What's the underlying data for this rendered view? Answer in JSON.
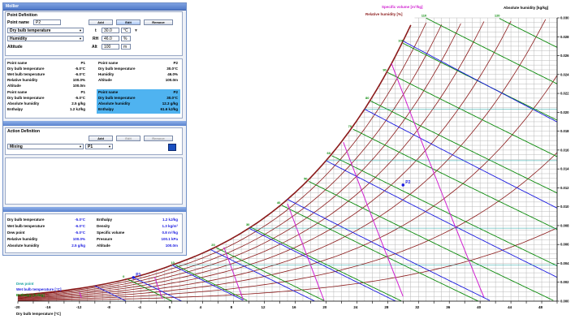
{
  "app": {
    "window_title": "Mollier",
    "accent": "#4f79c8"
  },
  "point_definition": {
    "header": "Point Definition",
    "point_name_label": "Point name",
    "point_name_value": "P2",
    "buttons": {
      "add": "Add",
      "edit": "Edit",
      "remove": "Remove"
    },
    "param1_select": "Dry bulb temperature",
    "param2_select": "Humidity",
    "param3_select": "Altitude",
    "t_label": "t",
    "t_value": "30.0",
    "t_unit": "°C",
    "rh_label": "RH",
    "rh_value": "46.0",
    "rh_unit": "%",
    "alt_label": "Alt",
    "alt_value": "100",
    "alt_unit": "m"
  },
  "point_list": {
    "left": {
      "name_label": "Point name",
      "name": "P1",
      "rows": [
        {
          "label": "Dry bulb temperature",
          "value": "-5.0°C"
        },
        {
          "label": "Wet bulb temperature",
          "value": "-6.0°C"
        },
        {
          "label": "Relative humidity",
          "value": "100.0%"
        },
        {
          "label": "Altitude",
          "value": "100.0m"
        }
      ],
      "sub_name": "P1",
      "sub_rows": [
        {
          "label": "Dry bulb temperature",
          "value": "-5.0°C"
        },
        {
          "label": "Absolute humidity",
          "value": "2.5 g/kg"
        },
        {
          "label": "Enthalpy",
          "value": "1.2 kJ/kg"
        }
      ]
    },
    "right": {
      "name_label": "Point name",
      "name": "P2",
      "rows": [
        {
          "label": "Dry bulb temperature",
          "value": "30.0°C"
        },
        {
          "label": "Humidity",
          "value": "46.0%"
        },
        {
          "label": "Altitude",
          "value": "100.0m"
        }
      ],
      "sub_name": "P2",
      "sub_rows": [
        {
          "label": "Dry bulb temperature",
          "value": "30.0°C"
        },
        {
          "label": "Absolute humidity",
          "value": "12.3 g/kg"
        },
        {
          "label": "Enthalpy",
          "value": "61.6 kJ/kg"
        }
      ]
    }
  },
  "action_definition": {
    "header": "Action Definition",
    "buttons": {
      "add": "Add",
      "edit": "Edit",
      "remove": "Remove"
    },
    "action_select": "Mixing",
    "point_select": "P1"
  },
  "results": {
    "left": [
      {
        "label": "Dry bulb temperature",
        "value": "-5.0°C"
      },
      {
        "label": "Wet bulb temperature",
        "value": "-6.0°C"
      },
      {
        "label": "Dew point",
        "value": "-5.0°C"
      },
      {
        "label": "Relative humidity",
        "value": "100.0%"
      },
      {
        "label": "Absolute humidity",
        "value": "2.5 g/kg"
      }
    ],
    "right": [
      {
        "label": "Enthalpy",
        "value": "1.2 kJ/kg"
      },
      {
        "label": "Density",
        "value": "1.3 kg/m³"
      },
      {
        "label": "Specific volume",
        "value": "0.8 m³/kg"
      },
      {
        "label": "Pressure",
        "value": "100.1 kPa"
      },
      {
        "label": "Altitude",
        "value": "100.0m"
      }
    ]
  },
  "chart_data": {
    "type": "line",
    "title_specific_volume": "Specific volume [m³/kg]",
    "title_relative_humidity": "Relative humidity [%]",
    "title_absolute_humidity": "Absolute humidity [kg/kg]",
    "xlabel": "Dry bulb temperature [°C]",
    "legend": [
      {
        "name": "Dew point",
        "color": "#1ba3a3"
      },
      {
        "name": "Wet bulb temperature [°C]",
        "color": "#1a1ae0"
      },
      {
        "name": "Enthalpy [kJ/kg]",
        "color": "#0a8a0a"
      }
    ],
    "xlim": [
      -20,
      50
    ],
    "ylim": [
      0,
      0.03
    ],
    "x_ticks": [
      -20,
      -18,
      -16,
      -14,
      -12,
      -10,
      -8,
      -6,
      -4,
      -2,
      0,
      2,
      4,
      6,
      8,
      10,
      12,
      14,
      16,
      18,
      20,
      22,
      24,
      26,
      28,
      30,
      32,
      34,
      36,
      38,
      40,
      42,
      44,
      46,
      48,
      50
    ],
    "y_ticks": [
      "0.000",
      "0.002",
      "0.004",
      "0.006",
      "0.008",
      "0.010",
      "0.012",
      "0.014",
      "0.016",
      "0.018",
      "0.020",
      "0.022",
      "0.024",
      "0.026",
      "0.028",
      "0.030"
    ],
    "rh_curves": [
      10,
      20,
      30,
      40,
      50,
      60,
      70,
      80,
      90,
      100
    ],
    "enthalpy_lines": [
      0,
      10,
      20,
      30,
      40,
      50,
      60,
      70,
      80,
      90,
      100,
      110,
      120,
      130
    ],
    "wet_bulb_lines": [
      -10,
      -5,
      0,
      5,
      10,
      15,
      20,
      25,
      30
    ],
    "specific_volume_lines": [
      0.75,
      0.78,
      0.81,
      0.84,
      0.87,
      0.9
    ],
    "points": [
      {
        "name": "P1",
        "t": -5,
        "w": 0.0025
      },
      {
        "name": "P2",
        "t": 30,
        "w": 0.0123
      }
    ],
    "colors": {
      "rh": "#8b1a1a",
      "enthalpy": "#0a8a0a",
      "wet_bulb": "#1a1ae0",
      "specific_volume": "#d01fd0",
      "dew_point": "#1ba3a3",
      "grid": "#b8b8b8"
    }
  }
}
